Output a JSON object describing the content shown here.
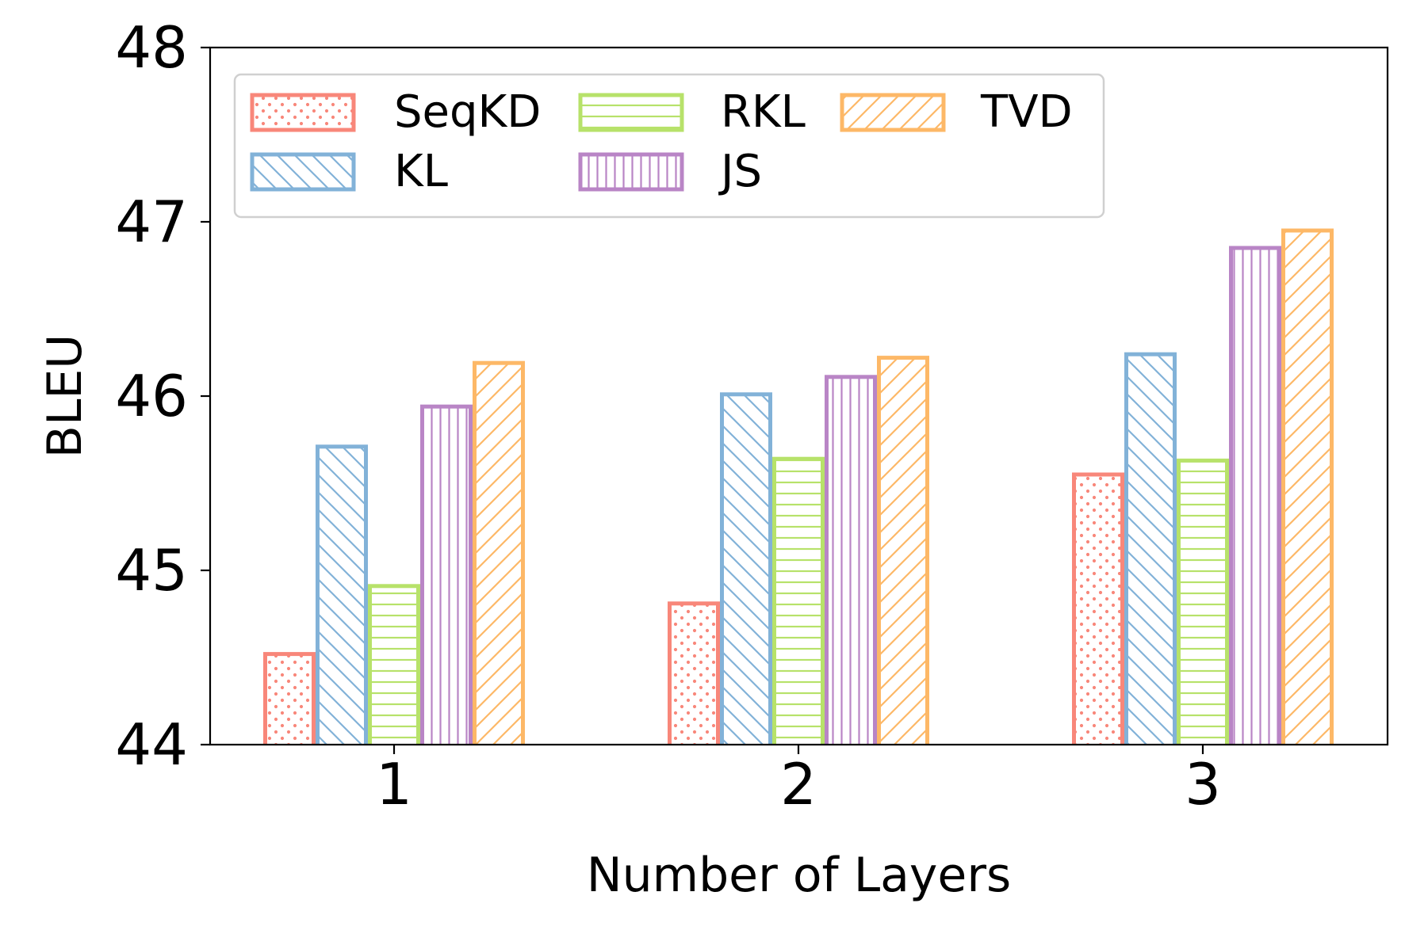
{
  "chart_data": {
    "type": "bar",
    "title": "",
    "xlabel": "Number of Layers",
    "ylabel": "BLEU",
    "categories": [
      "1",
      "2",
      "3"
    ],
    "ylim": [
      44,
      48
    ],
    "yticks": [
      44,
      45,
      46,
      47,
      48
    ],
    "grid": false,
    "legend_position": "top-left",
    "series": [
      {
        "name": "SeqKD",
        "values": [
          44.52,
          44.81,
          45.55
        ],
        "color": "#F8877A",
        "pattern": "dots"
      },
      {
        "name": "KL",
        "values": [
          45.71,
          46.01,
          46.24
        ],
        "color": "#82B2D8",
        "pattern": "backslash"
      },
      {
        "name": "RKL",
        "values": [
          44.91,
          45.64,
          45.63
        ],
        "color": "#B7E26A",
        "pattern": "horizontal"
      },
      {
        "name": "JS",
        "values": [
          45.94,
          46.11,
          46.85
        ],
        "color": "#B985C6",
        "pattern": "vertical"
      },
      {
        "name": "TVD",
        "values": [
          46.19,
          46.22,
          46.95
        ],
        "color": "#FDB867",
        "pattern": "slash"
      }
    ]
  }
}
